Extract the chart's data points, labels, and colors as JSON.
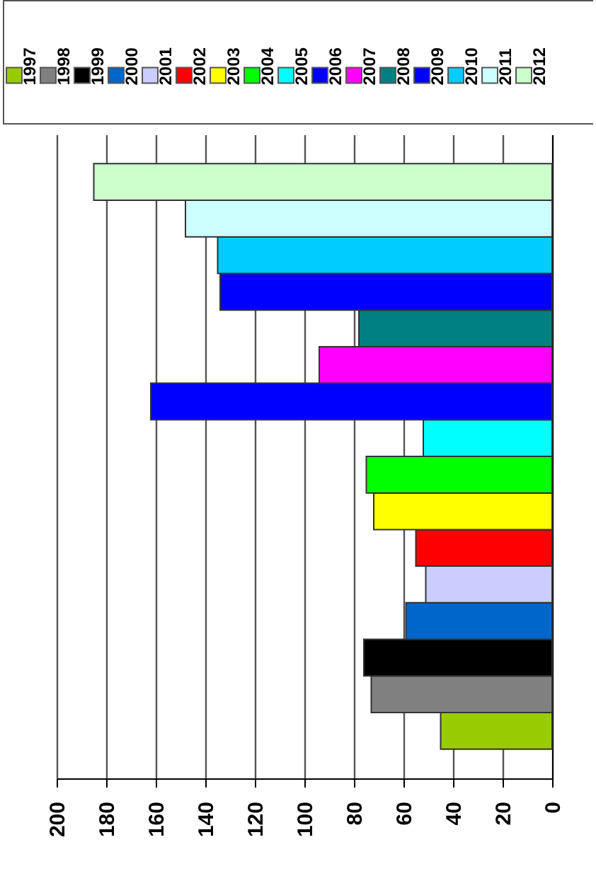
{
  "chart_data": {
    "type": "bar",
    "orientation": "horizontal",
    "categories": [
      null
    ],
    "series": [
      {
        "name": "1997",
        "color": "#99cc00",
        "values": [
          45
        ]
      },
      {
        "name": "1998",
        "color": "#808080",
        "values": [
          73
        ]
      },
      {
        "name": "1999",
        "color": "#000000",
        "values": [
          76
        ]
      },
      {
        "name": "2000",
        "color": "#0066cc",
        "values": [
          59
        ]
      },
      {
        "name": "2001",
        "color": "#ccccff",
        "values": [
          51
        ]
      },
      {
        "name": "2002",
        "color": "#ff0000",
        "values": [
          55
        ]
      },
      {
        "name": "2003",
        "color": "#ffff00",
        "values": [
          72
        ]
      },
      {
        "name": "2004",
        "color": "#00ff00",
        "values": [
          75
        ]
      },
      {
        "name": "2005",
        "color": "#00ffff",
        "values": [
          52
        ]
      },
      {
        "name": "2006",
        "color": "#0000ff",
        "values": [
          162
        ]
      },
      {
        "name": "2007",
        "color": "#ff00ff",
        "values": [
          94
        ]
      },
      {
        "name": "2008",
        "color": "#008080",
        "values": [
          78
        ]
      },
      {
        "name": "2009",
        "color": "#0000ff",
        "values": [
          134
        ]
      },
      {
        "name": "2010",
        "color": "#00ccff",
        "values": [
          135
        ]
      },
      {
        "name": "2011",
        "color": "#ccffff",
        "values": [
          148
        ]
      },
      {
        "name": "2012",
        "color": "#ccffcc",
        "values": [
          185
        ]
      }
    ],
    "xlim": [
      200,
      0
    ],
    "xticks": [
      0,
      20,
      40,
      60,
      80,
      100,
      120,
      140,
      160,
      180,
      200
    ],
    "grid": "x",
    "legend": "top",
    "tick_labels": "x"
  }
}
